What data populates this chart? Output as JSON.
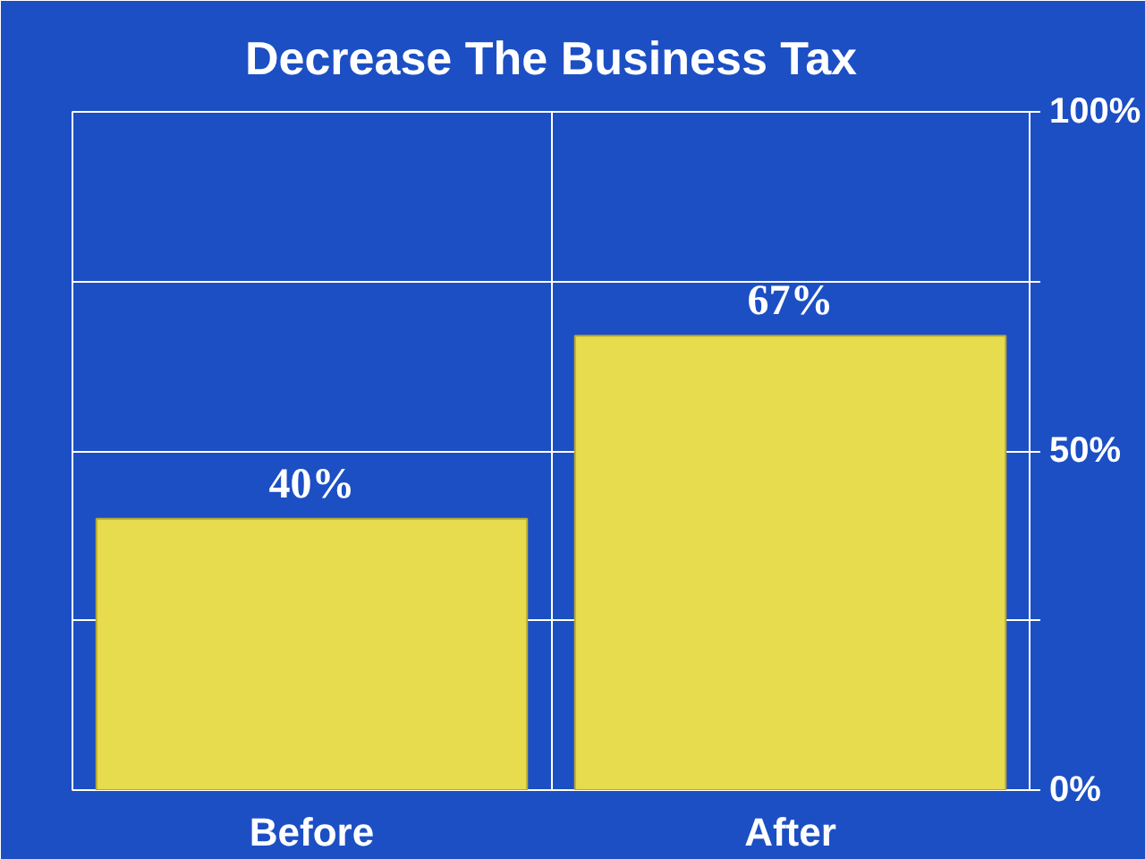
{
  "chart_data": {
    "type": "bar",
    "title": "Decrease The Business Tax",
    "categories": [
      "Before",
      "After"
    ],
    "values": [
      40,
      67
    ],
    "color": "#e6dc4e",
    "value_labels": [
      "40%",
      "67%"
    ],
    "ylim": [
      0,
      100
    ],
    "yticks": [
      {
        "value": 0,
        "label": "0%"
      },
      {
        "value": 25,
        "label": null
      },
      {
        "value": 50,
        "label": "50%"
      },
      {
        "value": 75,
        "label": null
      },
      {
        "value": 100,
        "label": "100%"
      }
    ],
    "grid": true
  }
}
